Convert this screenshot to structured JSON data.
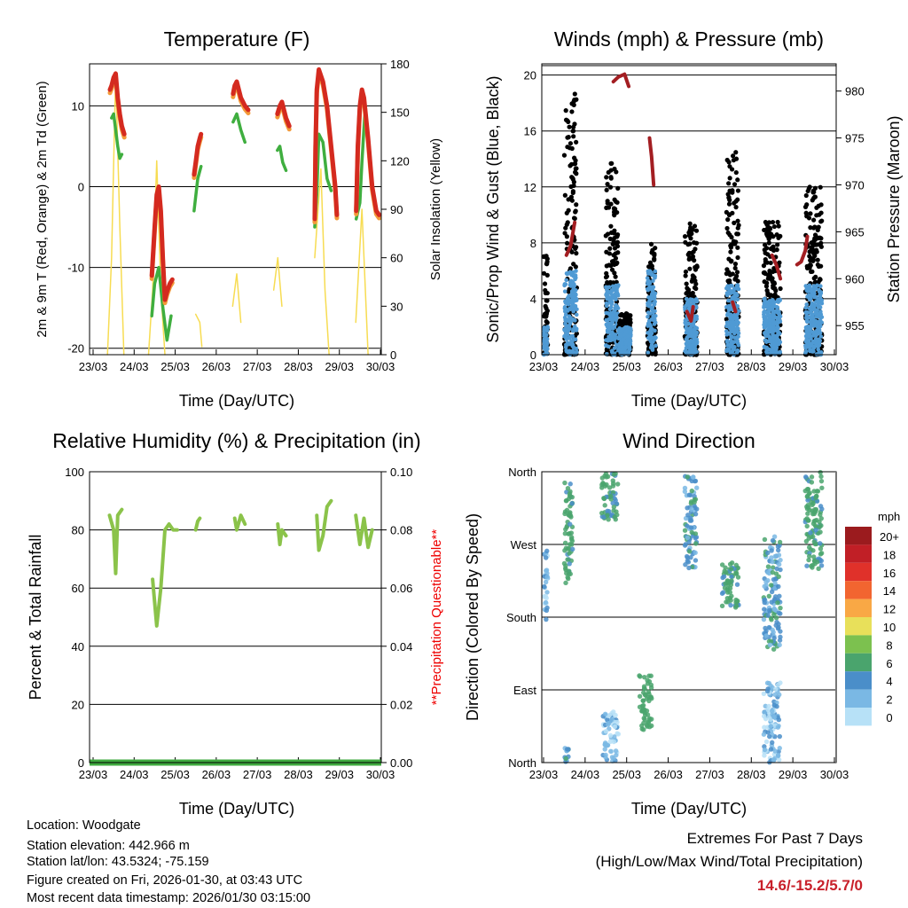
{
  "info": {
    "location": "Location: Woodgate",
    "elevation": "Station elevation: 442.966 m",
    "latlon": "Station lat/lon: 43.5324; -75.159",
    "created": "Figure created on Fri, 2026-01-30, at 03:43 UTC",
    "recent": "Most recent data timestamp: 2026/01/30 03:15:00"
  },
  "extremes": {
    "title": "Extremes For Past 7 Days",
    "subtitle": "(High/Low/Max Wind/Total Precipitation)",
    "values": "14.6/-15.2/5.7/0",
    "color": "#c8202a"
  },
  "chart_data": [
    {
      "type": "line",
      "title": "Temperature (F)",
      "xlabel": "Time (Day/UTC)",
      "ylabel": "2m & 9m T (Red, Orange) & 2m Td (Green)",
      "y2label": "Solar Insolation (Yellow)",
      "xticks": [
        "23/03",
        "24/03",
        "25/03",
        "26/03",
        "27/03",
        "28/03",
        "29/03",
        "30/03"
      ],
      "xlim": [
        0,
        7
      ],
      "ylim": [
        -20.8,
        15.2
      ],
      "yticks": [
        -20,
        -10,
        0,
        10
      ],
      "y2lim": [
        0,
        180
      ],
      "y2ticks": [
        0,
        30,
        60,
        90,
        120,
        150,
        180
      ],
      "series": [
        {
          "name": "Temperature",
          "color": "#d42a1f",
          "segments": [
            [
              [
                0.41,
                12
              ],
              [
                0.45,
                12.5
              ],
              [
                0.5,
                13.5
              ],
              [
                0.55,
                14
              ],
              [
                0.6,
                11
              ],
              [
                0.65,
                9
              ],
              [
                0.7,
                7.5
              ],
              [
                0.76,
                6.5
              ]
            ],
            [
              [
                1.43,
                -11
              ],
              [
                1.5,
                -5
              ],
              [
                1.55,
                -1
              ],
              [
                1.6,
                0
              ],
              [
                1.65,
                -3
              ],
              [
                1.7,
                -9
              ],
              [
                1.75,
                -14
              ],
              [
                1.8,
                -13
              ],
              [
                1.87,
                -12
              ],
              [
                1.93,
                -11.5
              ]
            ],
            [
              [
                2.46,
                1.5
              ],
              [
                2.5,
                3
              ],
              [
                2.55,
                5
              ],
              [
                2.6,
                6
              ],
              [
                2.63,
                6.5
              ]
            ],
            [
              [
                3.41,
                11.5
              ],
              [
                3.45,
                12.5
              ],
              [
                3.5,
                13
              ],
              [
                3.6,
                11
              ],
              [
                3.7,
                10
              ],
              [
                3.78,
                9.5
              ]
            ],
            [
              [
                4.49,
                9
              ],
              [
                4.55,
                10
              ],
              [
                4.6,
                10.5
              ],
              [
                4.7,
                8.5
              ],
              [
                4.78,
                7.5
              ]
            ],
            [
              [
                5.4,
                -4
              ],
              [
                5.42,
                5
              ],
              [
                5.45,
                12
              ],
              [
                5.5,
                14.5
              ],
              [
                5.6,
                13
              ],
              [
                5.7,
                10
              ],
              [
                5.8,
                5
              ],
              [
                5.9,
                0
              ],
              [
                5.94,
                -3.5
              ]
            ],
            [
              [
                6.41,
                -3
              ],
              [
                6.45,
                5
              ],
              [
                6.5,
                10
              ],
              [
                6.55,
                12
              ],
              [
                6.6,
                11
              ],
              [
                6.7,
                6
              ],
              [
                6.8,
                0
              ],
              [
                6.9,
                -3
              ],
              [
                6.97,
                -3.5
              ]
            ]
          ]
        },
        {
          "name": "Dewpoint",
          "color": "#3fae3f",
          "segments": [
            [
              [
                0.45,
                8.5
              ],
              [
                0.5,
                9
              ],
              [
                0.55,
                7
              ],
              [
                0.6,
                5
              ],
              [
                0.65,
                3.5
              ],
              [
                0.7,
                4
              ]
            ],
            [
              [
                1.43,
                -16
              ],
              [
                1.5,
                -12
              ],
              [
                1.6,
                -10
              ],
              [
                1.7,
                -15
              ],
              [
                1.8,
                -19
              ],
              [
                1.9,
                -16
              ]
            ],
            [
              [
                2.46,
                -3
              ],
              [
                2.55,
                1
              ],
              [
                2.63,
                2.5
              ]
            ],
            [
              [
                3.41,
                8
              ],
              [
                3.5,
                9
              ],
              [
                3.6,
                7
              ],
              [
                3.7,
                5.5
              ]
            ],
            [
              [
                4.49,
                4.5
              ],
              [
                4.55,
                5
              ],
              [
                4.62,
                3
              ],
              [
                4.7,
                2
              ]
            ],
            [
              [
                5.4,
                -5
              ],
              [
                5.45,
                -1
              ],
              [
                5.5,
                6.5
              ],
              [
                5.6,
                5.5
              ],
              [
                5.7,
                1
              ],
              [
                5.8,
                -0.5
              ]
            ],
            [
              [
                6.41,
                -4
              ],
              [
                6.5,
                -2
              ],
              [
                6.55,
                3
              ],
              [
                6.62,
                9
              ],
              [
                6.7,
                6
              ],
              [
                6.8,
                0
              ],
              [
                6.9,
                -3
              ]
            ]
          ]
        },
        {
          "name": "Solar Insolation",
          "color": "#f7dc52",
          "axis": "y2",
          "segments": [
            [
              [
                0.35,
                0
              ],
              [
                0.45,
                60
              ],
              [
                0.55,
                175
              ],
              [
                0.65,
                80
              ],
              [
                0.75,
                0
              ]
            ],
            [
              [
                1.35,
                0
              ],
              [
                1.45,
                40
              ],
              [
                1.55,
                120
              ],
              [
                1.65,
                40
              ],
              [
                1.75,
                0
              ]
            ],
            [
              [
                2.5,
                25
              ],
              [
                2.6,
                20
              ],
              [
                2.65,
                5
              ]
            ],
            [
              [
                3.4,
                30
              ],
              [
                3.5,
                50
              ],
              [
                3.6,
                20
              ]
            ],
            [
              [
                4.4,
                40
              ],
              [
                4.5,
                60
              ],
              [
                4.6,
                30
              ]
            ],
            [
              [
                5.4,
                60
              ],
              [
                5.55,
                115
              ],
              [
                5.65,
                40
              ],
              [
                5.75,
                0
              ]
            ],
            [
              [
                6.4,
                20
              ],
              [
                6.55,
                90
              ],
              [
                6.6,
                60
              ],
              [
                6.7,
                0
              ]
            ]
          ]
        }
      ]
    },
    {
      "type": "scatter",
      "title": "Winds (mph) & Pressure (mb)",
      "xlabel": "Time (Day/UTC)",
      "ylabel": "Sonic/Prop Wind & Gust (Blue, Black)",
      "y2label": "Station Pressure (Maroon)",
      "xticks": [
        "23/03",
        "24/03",
        "25/03",
        "26/03",
        "27/03",
        "28/03",
        "29/03",
        "30/03"
      ],
      "xlim": [
        0,
        7
      ],
      "ylim": [
        0,
        20.8
      ],
      "yticks": [
        0,
        4,
        8,
        12,
        16,
        20
      ],
      "y2lim": [
        951.9,
        982.9
      ],
      "y2ticks": [
        955,
        960,
        965,
        970,
        975,
        980
      ],
      "wind_bursts": [
        [
          0,
          0.1,
          8,
          2
        ],
        [
          0.5,
          0.8,
          19,
          6
        ],
        [
          1.5,
          1.8,
          14,
          5
        ],
        [
          1.8,
          2.1,
          3,
          2
        ],
        [
          2.5,
          2.7,
          8,
          6
        ],
        [
          3.4,
          3.7,
          9.5,
          4
        ],
        [
          4.4,
          4.7,
          14.5,
          5
        ],
        [
          5.3,
          5.7,
          9.5,
          4
        ],
        [
          6.3,
          6.7,
          12,
          5
        ]
      ],
      "gust_color": "#000000",
      "speed_color": "#4f9ad4",
      "pressure_color": "#a31e22",
      "pressure": [
        [
          [
            0.55,
            962.5
          ],
          [
            0.65,
            963.5
          ],
          [
            0.75,
            966
          ]
        ],
        [
          [
            1.68,
            981
          ],
          [
            1.8,
            981.5
          ],
          [
            1.95,
            981.8
          ],
          [
            2.05,
            980.5
          ]
        ],
        [
          [
            2.55,
            975
          ],
          [
            2.6,
            973
          ],
          [
            2.65,
            970
          ]
        ],
        [
          [
            3.45,
            956.5
          ],
          [
            3.55,
            955.5
          ],
          [
            3.6,
            957
          ]
        ],
        [
          [
            4.55,
            957.5
          ],
          [
            4.62,
            956.5
          ]
        ],
        [
          [
            5.5,
            962.5
          ],
          [
            5.6,
            961.5
          ],
          [
            5.7,
            960
          ]
        ],
        [
          [
            6.1,
            961.5
          ],
          [
            6.2,
            961.8
          ],
          [
            6.3,
            963
          ],
          [
            6.35,
            964.5
          ]
        ]
      ]
    },
    {
      "type": "line",
      "title": "Relative Humidity (%) & Precipitation (in)",
      "xlabel": "Time (Day/UTC)",
      "ylabel": "Percent & Total Rainfall",
      "y2label": "**Precipitation Questionable**",
      "xticks": [
        "23/03",
        "24/03",
        "25/03",
        "26/03",
        "27/03",
        "28/03",
        "29/03",
        "30/03"
      ],
      "xlim": [
        0,
        7
      ],
      "ylim": [
        0,
        100
      ],
      "yticks": [
        0,
        20,
        40,
        60,
        80,
        100
      ],
      "y2lim": [
        0,
        0.1
      ],
      "y2ticks": [
        "0.00",
        "0.02",
        "0.04",
        "0.06",
        "0.08",
        "0.10"
      ],
      "rh_color": "#8bc34a",
      "precip_color": "#3faa3f",
      "precip_total": 0,
      "rh": [
        [
          [
            0.4,
            85
          ],
          [
            0.5,
            80
          ],
          [
            0.55,
            65
          ],
          [
            0.6,
            85
          ],
          [
            0.7,
            87
          ]
        ],
        [
          [
            1.45,
            63
          ],
          [
            1.5,
            55
          ],
          [
            1.55,
            47
          ],
          [
            1.65,
            60
          ],
          [
            1.75,
            80
          ],
          [
            1.85,
            82
          ],
          [
            1.95,
            80
          ],
          [
            2.05,
            80
          ]
        ],
        [
          [
            2.5,
            80
          ],
          [
            2.55,
            83
          ],
          [
            2.6,
            84
          ]
        ],
        [
          [
            3.45,
            84
          ],
          [
            3.5,
            80
          ],
          [
            3.6,
            85
          ],
          [
            3.7,
            82
          ]
        ],
        [
          [
            4.5,
            82
          ],
          [
            4.55,
            75
          ],
          [
            4.6,
            80
          ],
          [
            4.7,
            78
          ]
        ],
        [
          [
            5.45,
            85
          ],
          [
            5.5,
            73
          ],
          [
            5.6,
            78
          ],
          [
            5.7,
            88
          ],
          [
            5.8,
            90
          ]
        ],
        [
          [
            6.4,
            85
          ],
          [
            6.5,
            75
          ],
          [
            6.6,
            84
          ],
          [
            6.7,
            74
          ],
          [
            6.8,
            80
          ]
        ]
      ]
    },
    {
      "type": "scatter",
      "title": "Wind Direction",
      "xlabel": "Time (Day/UTC)",
      "ylabel": "Direction (Colored By Speed)",
      "xticks": [
        "23/03",
        "24/03",
        "25/03",
        "26/03",
        "27/03",
        "28/03",
        "29/03",
        "30/03"
      ],
      "xlim": [
        0,
        7
      ],
      "ylim": [
        0,
        360
      ],
      "yticks": [
        "North",
        "East",
        "South",
        "West",
        "North"
      ],
      "clusters": [
        [
          0,
          0.1,
          165,
          264,
          1
        ],
        [
          0.5,
          0.7,
          220,
          350,
          3
        ],
        [
          0.5,
          0.6,
          0,
          20,
          2
        ],
        [
          1.4,
          1.8,
          300,
          360,
          3
        ],
        [
          1.4,
          1.8,
          0,
          65,
          1
        ],
        [
          2.3,
          2.6,
          40,
          110,
          4
        ],
        [
          3.4,
          3.7,
          240,
          355,
          2
        ],
        [
          4.3,
          4.7,
          190,
          250,
          3
        ],
        [
          5.3,
          5.7,
          140,
          280,
          2
        ],
        [
          5.3,
          5.7,
          0,
          100,
          1
        ],
        [
          6.3,
          6.7,
          240,
          360,
          3
        ]
      ],
      "legend": {
        "title": "mph",
        "labels": [
          "20+",
          "18",
          "16",
          "14",
          "12",
          "10",
          "8",
          "6",
          "4",
          "2",
          "0"
        ],
        "colors": [
          "#9b1b1e",
          "#c11f26",
          "#e0312a",
          "#f26530",
          "#f9a845",
          "#e8e05a",
          "#7cc14f",
          "#4aa46d",
          "#4a8ec9",
          "#7ab8e4",
          "#b7e1f7"
        ]
      }
    }
  ]
}
